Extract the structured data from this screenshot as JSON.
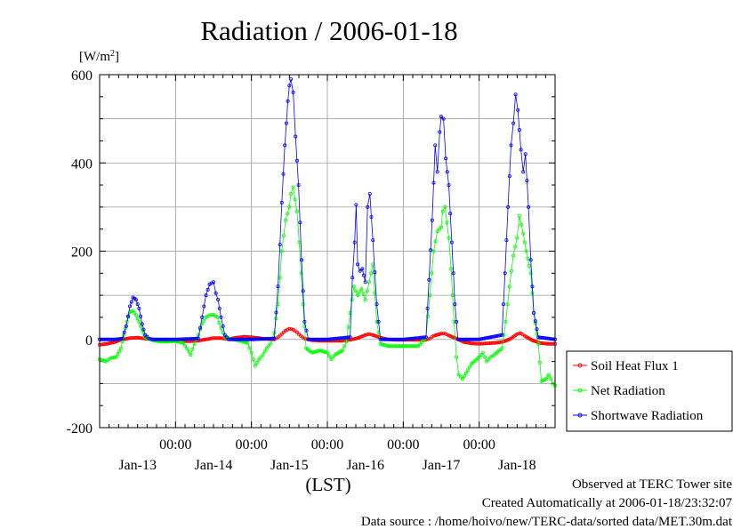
{
  "title": "Radiation / 2006-01-18",
  "footer": {
    "line1": "Observed at TERC Tower site",
    "line2": "Created Automatically at 2006-01-18/23:32:07",
    "line3": "Data source : /home/hoivo/new/TERC-data/sorted  data/MET.30m.dat"
  },
  "chart_data": {
    "type": "line",
    "title": "Radiation / 2006-01-18",
    "ylabel_unit": "[W/m2]",
    "xlabel": "(LST)",
    "ylim": [
      -200,
      600
    ],
    "yticks": [
      -200,
      0,
      200,
      400,
      600
    ],
    "xlim_days": [
      0,
      6
    ],
    "midnight_ticks": [
      1,
      2,
      3,
      4,
      5
    ],
    "midnight_label": "00:00",
    "day_labels": [
      {
        "label": "Jan-13",
        "day": 0.5
      },
      {
        "label": "Jan-14",
        "day": 1.5
      },
      {
        "label": "Jan-15",
        "day": 2.5
      },
      {
        "label": "Jan-16",
        "day": 3.5
      },
      {
        "label": "Jan-17",
        "day": 4.5
      },
      {
        "label": "Jan-18",
        "day": 5.5
      }
    ],
    "grid": true,
    "legend_position": "right",
    "series": [
      {
        "name": "Soil Heat Flux 1",
        "color": "#ff0000",
        "points": [
          [
            0,
            -12
          ],
          [
            0.1,
            -10
          ],
          [
            0.2,
            -6
          ],
          [
            0.3,
            0
          ],
          [
            0.4,
            3
          ],
          [
            0.5,
            4
          ],
          [
            0.6,
            2
          ],
          [
            0.7,
            0
          ],
          [
            0.8,
            -2
          ],
          [
            0.9,
            -3
          ],
          [
            1.0,
            -3
          ],
          [
            1.1,
            -4
          ],
          [
            1.2,
            -4
          ],
          [
            1.3,
            -3
          ],
          [
            1.4,
            0
          ],
          [
            1.5,
            3
          ],
          [
            1.6,
            3
          ],
          [
            1.7,
            1
          ],
          [
            1.8,
            4
          ],
          [
            1.9,
            6
          ],
          [
            2.0,
            5
          ],
          [
            2.1,
            3
          ],
          [
            2.2,
            1
          ],
          [
            2.3,
            0
          ],
          [
            2.35,
            5
          ],
          [
            2.4,
            12
          ],
          [
            2.45,
            20
          ],
          [
            2.5,
            24
          ],
          [
            2.55,
            22
          ],
          [
            2.6,
            16
          ],
          [
            2.65,
            8
          ],
          [
            2.7,
            2
          ],
          [
            2.8,
            -2
          ],
          [
            2.9,
            -3
          ],
          [
            3.0,
            -3
          ],
          [
            3.1,
            -3
          ],
          [
            3.2,
            -3
          ],
          [
            3.3,
            -1
          ],
          [
            3.4,
            3
          ],
          [
            3.5,
            10
          ],
          [
            3.55,
            12
          ],
          [
            3.6,
            10
          ],
          [
            3.7,
            4
          ],
          [
            3.8,
            0
          ],
          [
            3.9,
            -1
          ],
          [
            4.0,
            -1
          ],
          [
            4.1,
            -1
          ],
          [
            4.2,
            -1
          ],
          [
            4.3,
            -1
          ],
          [
            4.35,
            2
          ],
          [
            4.4,
            8
          ],
          [
            4.5,
            13
          ],
          [
            4.55,
            13
          ],
          [
            4.6,
            9
          ],
          [
            4.7,
            2
          ],
          [
            4.8,
            -6
          ],
          [
            4.9,
            -9
          ],
          [
            5.0,
            -10
          ],
          [
            5.1,
            -9
          ],
          [
            5.2,
            -8
          ],
          [
            5.3,
            -6
          ],
          [
            5.4,
            0
          ],
          [
            5.5,
            12
          ],
          [
            5.55,
            14
          ],
          [
            5.6,
            8
          ],
          [
            5.7,
            -2
          ],
          [
            5.8,
            -8
          ],
          [
            5.9,
            -10
          ],
          [
            6.0,
            -10
          ]
        ]
      },
      {
        "name": "Net Radiation",
        "color": "#00ff00",
        "points": [
          [
            0,
            -45
          ],
          [
            0.08,
            -50
          ],
          [
            0.15,
            -42
          ],
          [
            0.22,
            -40
          ],
          [
            0.28,
            -20
          ],
          [
            0.32,
            10
          ],
          [
            0.36,
            40
          ],
          [
            0.4,
            62
          ],
          [
            0.44,
            65
          ],
          [
            0.48,
            55
          ],
          [
            0.52,
            40
          ],
          [
            0.56,
            20
          ],
          [
            0.6,
            5
          ],
          [
            0.7,
            -2
          ],
          [
            0.8,
            -5
          ],
          [
            0.9,
            -5
          ],
          [
            1.0,
            -4
          ],
          [
            1.1,
            -8
          ],
          [
            1.15,
            -20
          ],
          [
            1.2,
            -35
          ],
          [
            1.25,
            -10
          ],
          [
            1.3,
            10
          ],
          [
            1.35,
            35
          ],
          [
            1.4,
            50
          ],
          [
            1.45,
            55
          ],
          [
            1.5,
            56
          ],
          [
            1.55,
            50
          ],
          [
            1.6,
            25
          ],
          [
            1.65,
            5
          ],
          [
            1.75,
            0
          ],
          [
            1.85,
            -3
          ],
          [
            1.95,
            -8
          ],
          [
            2.0,
            -30
          ],
          [
            2.05,
            -60
          ],
          [
            2.1,
            -45
          ],
          [
            2.15,
            -35
          ],
          [
            2.2,
            -20
          ],
          [
            2.25,
            -10
          ],
          [
            2.3,
            15
          ],
          [
            2.35,
            80
          ],
          [
            2.4,
            200
          ],
          [
            2.45,
            270
          ],
          [
            2.5,
            300
          ],
          [
            2.52,
            330
          ],
          [
            2.55,
            345
          ],
          [
            2.6,
            290
          ],
          [
            2.63,
            220
          ],
          [
            2.68,
            80
          ],
          [
            2.72,
            -20
          ],
          [
            2.8,
            -30
          ],
          [
            2.9,
            -25
          ],
          [
            3.0,
            -30
          ],
          [
            3.05,
            -45
          ],
          [
            3.1,
            -35
          ],
          [
            3.2,
            -25
          ],
          [
            3.25,
            -5
          ],
          [
            3.3,
            60
          ],
          [
            3.35,
            120
          ],
          [
            3.4,
            100
          ],
          [
            3.45,
            115
          ],
          [
            3.5,
            90
          ],
          [
            3.55,
            130
          ],
          [
            3.6,
            170
          ],
          [
            3.65,
            40
          ],
          [
            3.7,
            -10
          ],
          [
            3.8,
            -15
          ],
          [
            3.9,
            -15
          ],
          [
            4.0,
            -15
          ],
          [
            4.1,
            -15
          ],
          [
            4.2,
            -15
          ],
          [
            4.3,
            5
          ],
          [
            4.35,
            100
          ],
          [
            4.4,
            200
          ],
          [
            4.45,
            245
          ],
          [
            4.5,
            255
          ],
          [
            4.52,
            290
          ],
          [
            4.55,
            300
          ],
          [
            4.6,
            230
          ],
          [
            4.63,
            160
          ],
          [
            4.67,
            40
          ],
          [
            4.7,
            -40
          ],
          [
            4.73,
            -80
          ],
          [
            4.78,
            -90
          ],
          [
            4.85,
            -70
          ],
          [
            4.9,
            -55
          ],
          [
            5.0,
            -40
          ],
          [
            5.05,
            -30
          ],
          [
            5.1,
            -50
          ],
          [
            5.15,
            -40
          ],
          [
            5.2,
            -35
          ],
          [
            5.3,
            -20
          ],
          [
            5.35,
            40
          ],
          [
            5.4,
            120
          ],
          [
            5.45,
            190
          ],
          [
            5.5,
            230
          ],
          [
            5.53,
            280
          ],
          [
            5.58,
            240
          ],
          [
            5.62,
            200
          ],
          [
            5.68,
            150
          ],
          [
            5.72,
            60
          ],
          [
            5.78,
            -10
          ],
          [
            5.82,
            -95
          ],
          [
            5.88,
            -90
          ],
          [
            5.92,
            -80
          ],
          [
            5.97,
            -100
          ],
          [
            6.0,
            -105
          ]
        ]
      },
      {
        "name": "Shortwave Radiation",
        "color": "#0000ff",
        "points": [
          [
            0,
            0
          ],
          [
            0.2,
            0
          ],
          [
            0.3,
            2
          ],
          [
            0.35,
            30
          ],
          [
            0.4,
            75
          ],
          [
            0.44,
            95
          ],
          [
            0.48,
            90
          ],
          [
            0.52,
            70
          ],
          [
            0.56,
            35
          ],
          [
            0.6,
            10
          ],
          [
            0.65,
            2
          ],
          [
            0.7,
            0
          ],
          [
            1.0,
            0
          ],
          [
            1.3,
            2
          ],
          [
            1.35,
            50
          ],
          [
            1.4,
            100
          ],
          [
            1.45,
            125
          ],
          [
            1.5,
            130
          ],
          [
            1.53,
            105
          ],
          [
            1.56,
            90
          ],
          [
            1.6,
            50
          ],
          [
            1.65,
            10
          ],
          [
            1.7,
            0
          ],
          [
            2.0,
            0
          ],
          [
            2.3,
            2
          ],
          [
            2.35,
            120
          ],
          [
            2.4,
            310
          ],
          [
            2.44,
            440
          ],
          [
            2.48,
            540
          ],
          [
            2.5,
            575
          ],
          [
            2.52,
            590
          ],
          [
            2.55,
            560
          ],
          [
            2.58,
            460
          ],
          [
            2.62,
            350
          ],
          [
            2.66,
            180
          ],
          [
            2.7,
            40
          ],
          [
            2.75,
            0
          ],
          [
            3.0,
            0
          ],
          [
            3.3,
            5
          ],
          [
            3.33,
            140
          ],
          [
            3.36,
            220
          ],
          [
            3.38,
            305
          ],
          [
            3.4,
            170
          ],
          [
            3.43,
            155
          ],
          [
            3.46,
            160
          ],
          [
            3.5,
            130
          ],
          [
            3.53,
            300
          ],
          [
            3.56,
            330
          ],
          [
            3.6,
            225
          ],
          [
            3.65,
            80
          ],
          [
            3.7,
            0
          ],
          [
            4.0,
            0
          ],
          [
            4.3,
            5
          ],
          [
            4.34,
            135
          ],
          [
            4.38,
            270
          ],
          [
            4.42,
            440
          ],
          [
            4.45,
            380
          ],
          [
            4.48,
            470
          ],
          [
            4.5,
            505
          ],
          [
            4.53,
            500
          ],
          [
            4.56,
            410
          ],
          [
            4.6,
            350
          ],
          [
            4.64,
            220
          ],
          [
            4.68,
            80
          ],
          [
            4.72,
            0
          ],
          [
            5.0,
            0
          ],
          [
            5.3,
            10
          ],
          [
            5.34,
            150
          ],
          [
            5.38,
            300
          ],
          [
            5.42,
            440
          ],
          [
            5.45,
            490
          ],
          [
            5.48,
            555
          ],
          [
            5.51,
            520
          ],
          [
            5.55,
            430
          ],
          [
            5.58,
            380
          ],
          [
            5.61,
            420
          ],
          [
            5.65,
            300
          ],
          [
            5.68,
            180
          ],
          [
            5.72,
            60
          ],
          [
            5.78,
            5
          ],
          [
            6.0,
            0
          ]
        ]
      }
    ]
  }
}
